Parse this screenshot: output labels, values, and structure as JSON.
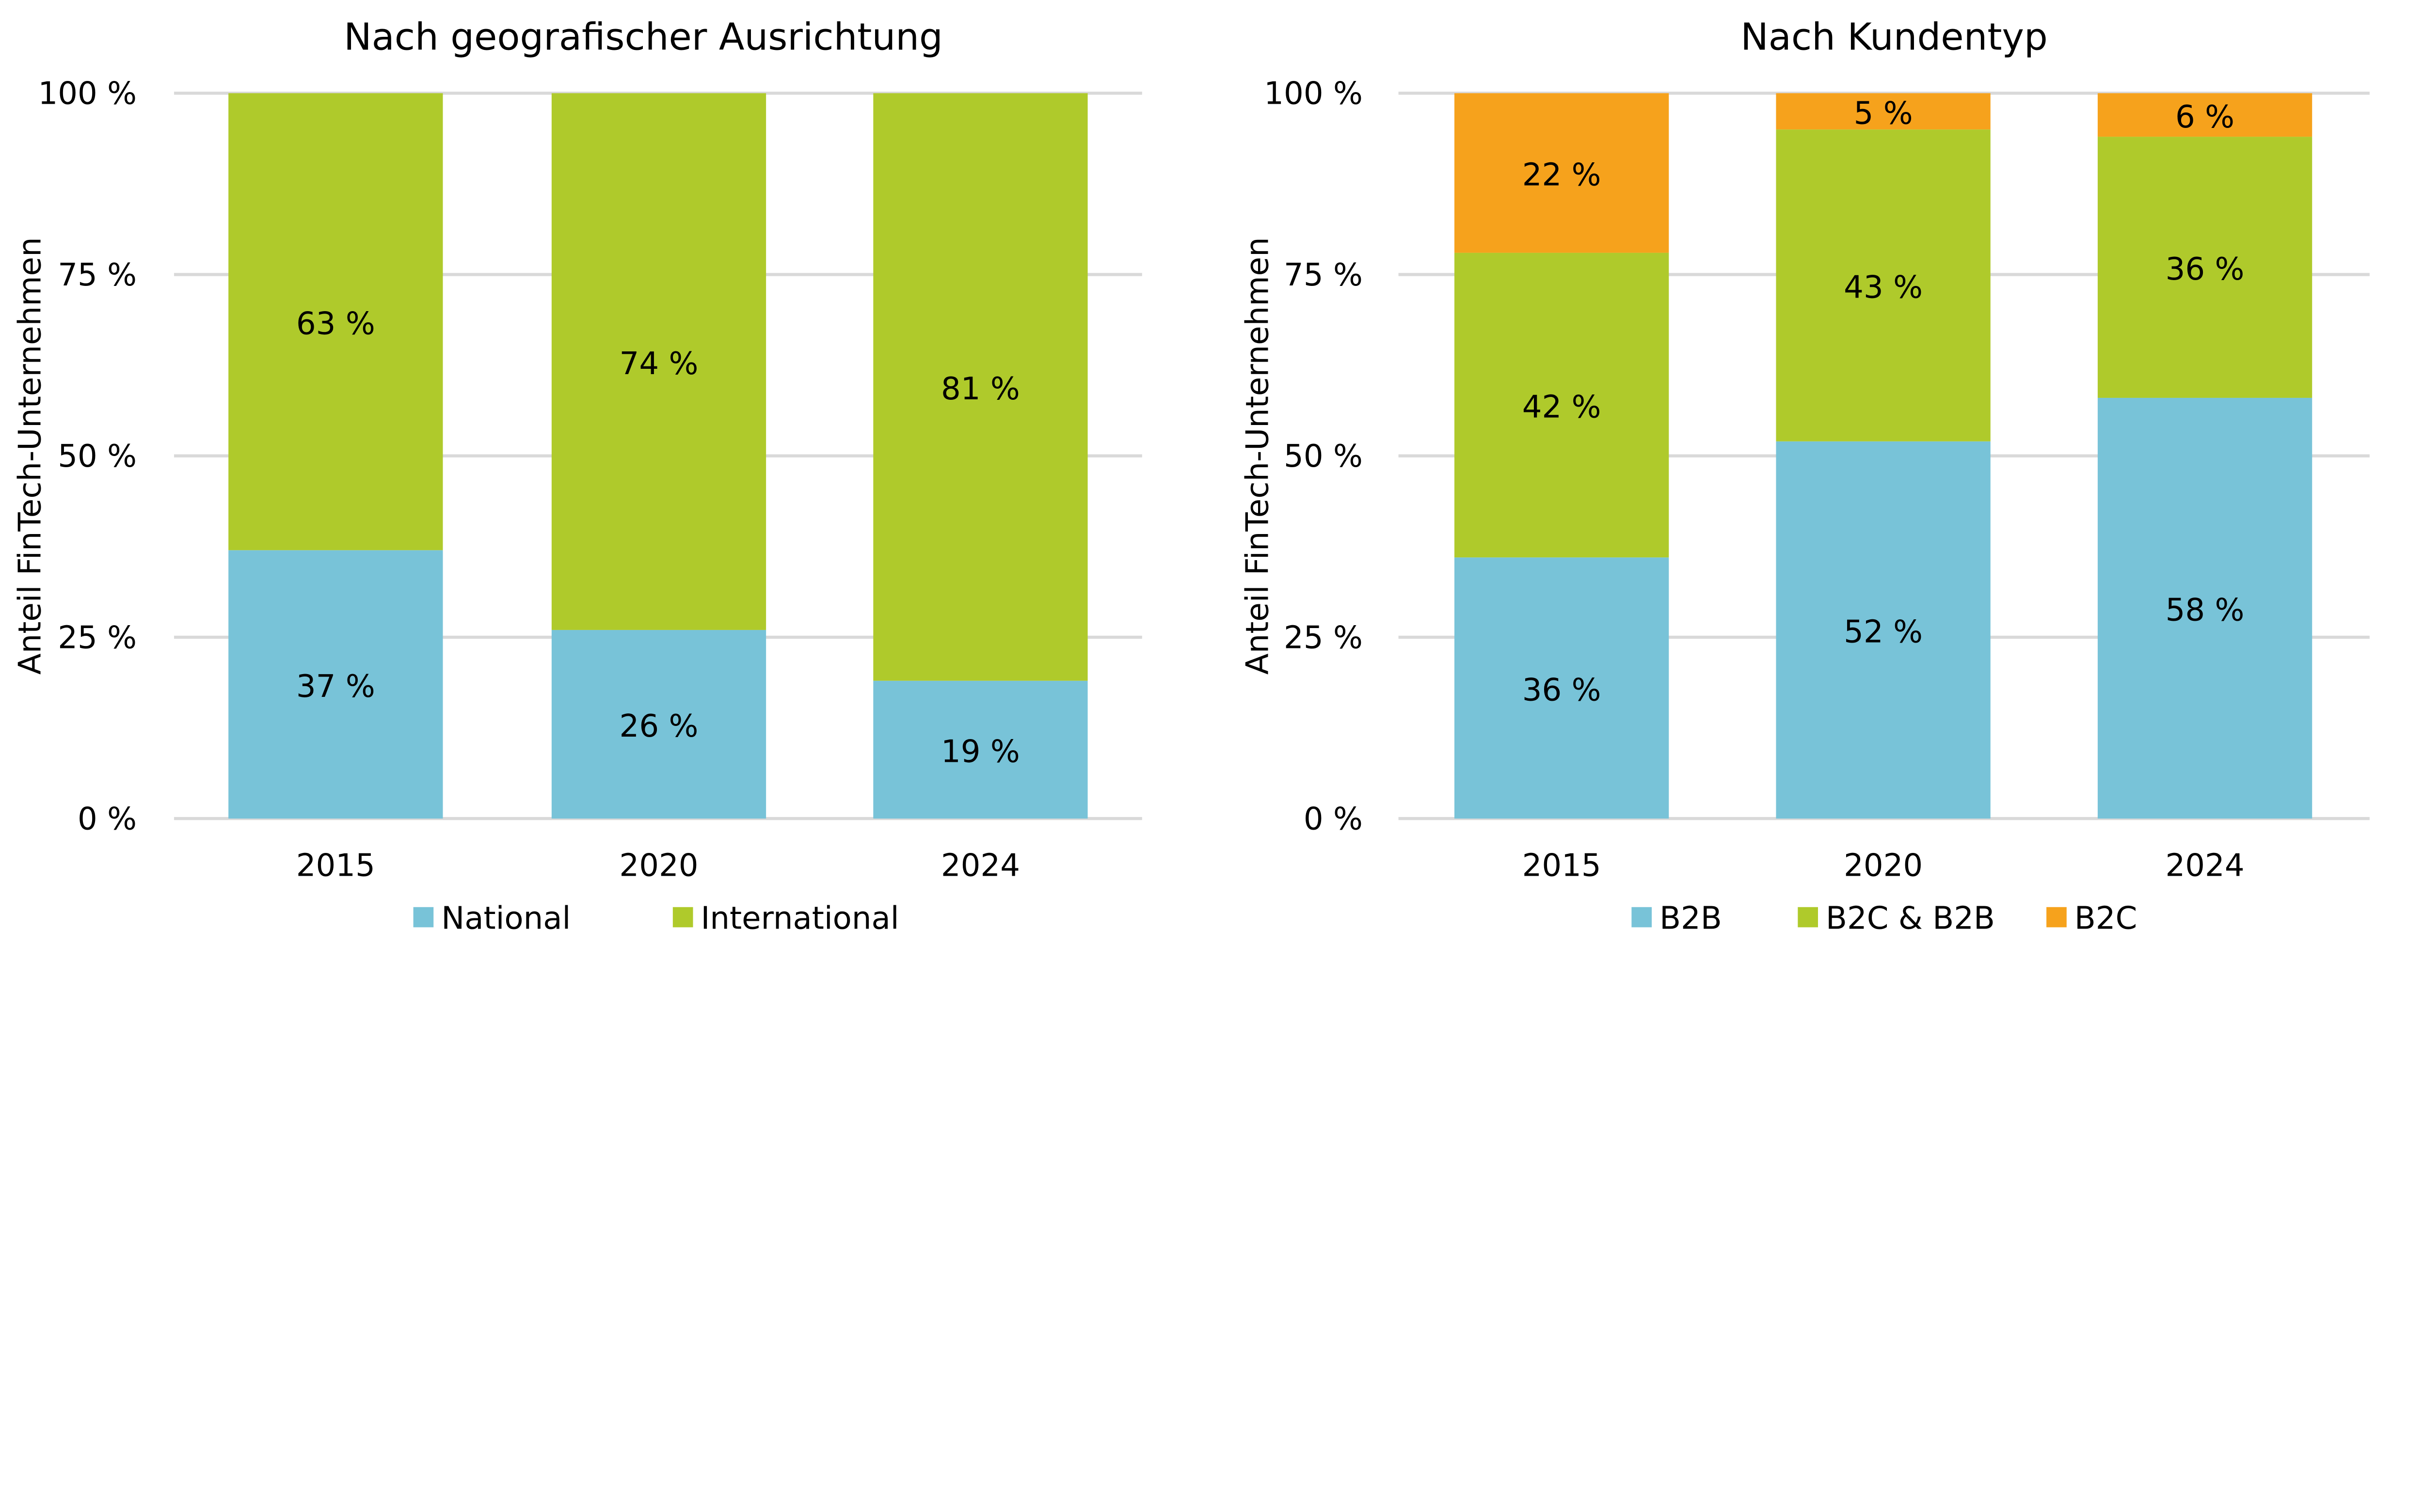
{
  "chart_data": [
    {
      "type": "bar",
      "stacked": true,
      "title": "Nach geografischer Ausrichtung",
      "ylabel": "Anteil FinTech-Unternehmen",
      "xlabel": "",
      "ylim": [
        0,
        100
      ],
      "yticks": [
        "0 %",
        "25 %",
        "50 %",
        "75 %",
        "100 %"
      ],
      "grid": true,
      "legend_position": "bottom",
      "categories": [
        "2015",
        "2020",
        "2024"
      ],
      "series": [
        {
          "name": "National",
          "color": "#78C3D8",
          "values": [
            37,
            26,
            19
          ],
          "labels": [
            "37 %",
            "26 %",
            "19 %"
          ]
        },
        {
          "name": "International",
          "color": "#AFCA2B",
          "values": [
            63,
            74,
            81
          ],
          "labels": [
            "63 %",
            "74 %",
            "81 %"
          ]
        }
      ]
    },
    {
      "type": "bar",
      "stacked": true,
      "title": "Nach Kundentyp",
      "ylabel": "Anteil FinTech-Unternehmen",
      "xlabel": "",
      "ylim": [
        0,
        100
      ],
      "yticks": [
        "0 %",
        "25 %",
        "50 %",
        "75 %",
        "100 %"
      ],
      "grid": true,
      "legend_position": "bottom",
      "categories": [
        "2015",
        "2020",
        "2024"
      ],
      "series": [
        {
          "name": "B2B",
          "color": "#78C3D8",
          "values": [
            36,
            52,
            58
          ],
          "labels": [
            "36 %",
            "52 %",
            "58 %"
          ]
        },
        {
          "name": "B2C & B2B",
          "color": "#AFCA2B",
          "values": [
            42,
            43,
            36
          ],
          "labels": [
            "42 %",
            "43 %",
            "36 %"
          ]
        },
        {
          "name": "B2C",
          "color": "#F6A21C",
          "values": [
            22,
            5,
            6
          ],
          "labels": [
            "22 %",
            "5 %",
            "6 %"
          ]
        }
      ]
    }
  ]
}
